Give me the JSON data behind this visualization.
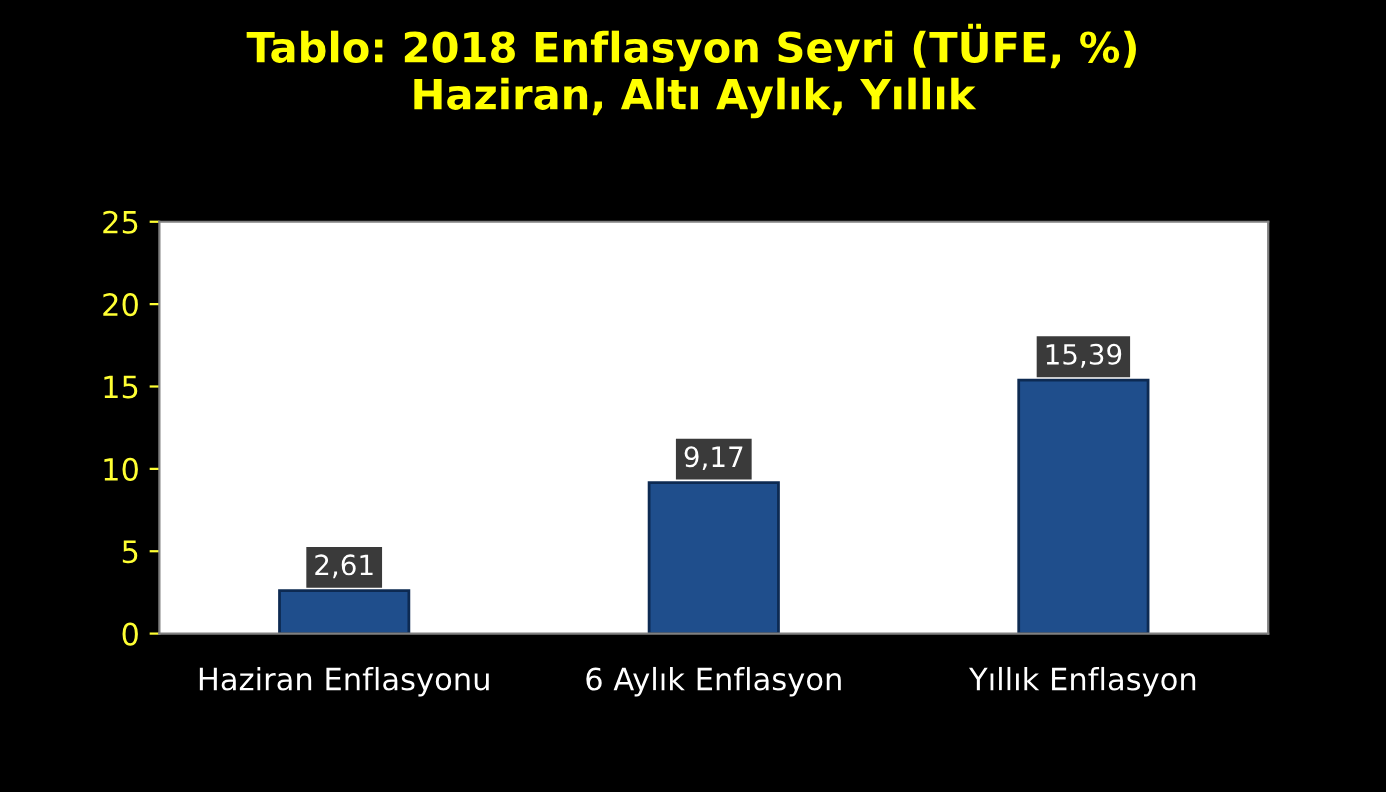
{
  "chart_data": {
    "type": "bar",
    "title": "Tablo: 2018 Enflasyon Seyri (TÜFE, %)\nHaziran, Altı Aylık, Yıllık",
    "categories": [
      "Haziran Enflasyonu",
      "6 Aylık Enflasyon",
      "Yıllık Enflasyon"
    ],
    "values": [
      2.61,
      9.17,
      15.39
    ],
    "color": "#1f4e8c",
    "value_labels": [
      "2,61",
      "9,17",
      "15,39"
    ],
    "ylim": [
      0,
      25
    ],
    "yticks": [
      0,
      5,
      10,
      15,
      20,
      25
    ],
    "grid": false
  }
}
